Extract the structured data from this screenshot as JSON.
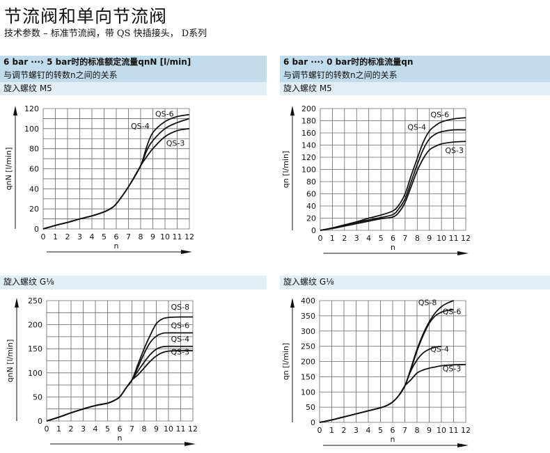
{
  "header": {
    "title": "节流阀和单向节流阀",
    "subtitle": "技术参数 – 标准节流阀，带 QS 快插接头， D系列"
  },
  "sections": {
    "left": {
      "line1": "6 bar ···› 5 bar时的标准额定流量qnN [l/min]",
      "line2": "与调节螺钉的转数n之间的关系"
    },
    "right": {
      "line1": "6 bar ···› 0 bar时的标准流量qn",
      "line2": "与调节螺钉的转数n之间的关系"
    },
    "thread_m5": "旋入螺纹 M5",
    "thread_g18": "旋入螺纹 G⅛"
  },
  "chart_data": [
    {
      "type": "line",
      "xlabel": "n",
      "ylabel": "qnN [l/min]",
      "xlim": [
        0,
        12
      ],
      "ylim": [
        0,
        120
      ],
      "xticks": [
        0,
        1,
        2,
        3,
        4,
        5,
        6,
        7,
        8,
        9,
        10,
        11,
        12
      ],
      "yticks": [
        0,
        20,
        40,
        60,
        80,
        100,
        120
      ],
      "grid": true,
      "series": [
        {
          "name": "QS-6",
          "x": [
            0,
            1,
            2,
            3,
            4,
            5,
            5.5,
            6,
            7,
            8,
            8.5,
            9,
            10,
            11,
            12
          ],
          "y": [
            0,
            3.5,
            6.5,
            10,
            13,
            17,
            20,
            25,
            42,
            63,
            82,
            96,
            107,
            112,
            114
          ]
        },
        {
          "name": "QS-4",
          "x": [
            0,
            1,
            2,
            3,
            4,
            5,
            5.5,
            6,
            7,
            8,
            8.5,
            9,
            10,
            11,
            12
          ],
          "y": [
            0,
            3.5,
            6.5,
            10,
            13,
            17,
            20,
            25,
            42,
            63,
            78,
            88,
            100,
            106,
            110
          ]
        },
        {
          "name": "QS-3",
          "x": [
            0,
            1,
            2,
            3,
            4,
            5,
            5.5,
            6,
            7,
            8,
            8.5,
            9,
            10,
            11,
            12
          ],
          "y": [
            0,
            3.5,
            6.5,
            10,
            13,
            17,
            20,
            25,
            42,
            63,
            72,
            80,
            92,
            98,
            100
          ]
        }
      ]
    },
    {
      "type": "line",
      "xlabel": "n",
      "ylabel": "qn [l/min]",
      "xlim": [
        0,
        12
      ],
      "ylim": [
        0,
        200
      ],
      "xticks": [
        0,
        1,
        2,
        3,
        4,
        5,
        6,
        7,
        8,
        9,
        10,
        11,
        12
      ],
      "yticks": [
        0,
        20,
        40,
        60,
        80,
        100,
        120,
        140,
        160,
        180,
        200
      ],
      "grid": true,
      "series": [
        {
          "name": "QS-6",
          "x": [
            0,
            1,
            2,
            3,
            4,
            5,
            6,
            6.5,
            7,
            7.5,
            8,
            8.5,
            9,
            9.5,
            10,
            11,
            12
          ],
          "y": [
            0,
            4,
            9,
            14,
            20,
            25,
            32,
            42,
            60,
            90,
            118,
            145,
            163,
            172,
            178,
            183,
            185
          ]
        },
        {
          "name": "QS-4",
          "x": [
            0,
            1,
            2,
            3,
            4,
            5,
            6,
            6.5,
            7,
            7.5,
            8,
            8.5,
            9,
            9.5,
            10,
            11,
            12
          ],
          "y": [
            0,
            3.5,
            8,
            13,
            17,
            21,
            26,
            36,
            52,
            80,
            108,
            133,
            150,
            158,
            162,
            165,
            165
          ]
        },
        {
          "name": "QS-3",
          "x": [
            0,
            1,
            2,
            3,
            4,
            5,
            6,
            6.5,
            7,
            7.5,
            8,
            8.5,
            9,
            9.5,
            10,
            11,
            12
          ],
          "y": [
            0,
            3,
            7,
            11,
            15,
            19,
            22,
            30,
            46,
            72,
            98,
            118,
            132,
            138,
            142,
            145,
            146
          ]
        }
      ]
    },
    {
      "type": "line",
      "xlabel": "n",
      "ylabel": "qnN [l/min]",
      "xlim": [
        0,
        12
      ],
      "ylim": [
        0,
        250
      ],
      "xticks": [
        0,
        1,
        2,
        3,
        4,
        5,
        6,
        7,
        8,
        9,
        10,
        11,
        12
      ],
      "yticks": [
        0,
        50,
        100,
        150,
        200,
        250
      ],
      "grid": true,
      "series": [
        {
          "name": "QS-8",
          "x": [
            0,
            1,
            2,
            3,
            4,
            5,
            5.5,
            6,
            6.5,
            7,
            7.5,
            8,
            8.5,
            9,
            9.5,
            10,
            11,
            12
          ],
          "y": [
            0,
            8,
            17,
            25,
            32,
            37,
            42,
            50,
            68,
            85,
            118,
            150,
            178,
            202,
            212,
            215,
            216,
            216
          ]
        },
        {
          "name": "QS-6",
          "x": [
            0,
            1,
            2,
            3,
            4,
            5,
            5.5,
            6,
            6.5,
            7,
            7.5,
            8,
            8.5,
            9,
            9.5,
            10,
            11,
            12
          ],
          "y": [
            0,
            8,
            17,
            25,
            32,
            37,
            42,
            50,
            68,
            85,
            112,
            140,
            163,
            176,
            182,
            183,
            183,
            183
          ]
        },
        {
          "name": "QS-4",
          "x": [
            0,
            1,
            2,
            3,
            4,
            5,
            5.5,
            6,
            6.5,
            7,
            7.5,
            8,
            8.5,
            9,
            9.5,
            10,
            11,
            12
          ],
          "y": [
            0,
            8,
            17,
            25,
            32,
            37,
            42,
            50,
            68,
            85,
            104,
            122,
            138,
            149,
            154,
            155,
            155,
            155
          ]
        },
        {
          "name": "QS-3",
          "x": [
            0,
            1,
            2,
            3,
            4,
            5,
            5.5,
            6,
            6.5,
            7,
            7.5,
            8,
            8.5,
            9,
            9.5,
            10,
            11,
            12
          ],
          "y": [
            0,
            8,
            17,
            25,
            32,
            37,
            42,
            50,
            68,
            85,
            96,
            110,
            124,
            135,
            142,
            145,
            146,
            146
          ]
        }
      ]
    },
    {
      "type": "line",
      "xlabel": "n",
      "ylabel": "qn [l/min]",
      "xlim": [
        0,
        12
      ],
      "ylim": [
        0,
        400
      ],
      "xticks": [
        0,
        1,
        2,
        3,
        4,
        5,
        6,
        7,
        8,
        9,
        10,
        11,
        12
      ],
      "yticks": [
        0,
        50,
        100,
        150,
        200,
        250,
        300,
        350,
        400
      ],
      "grid": true,
      "series": [
        {
          "name": "QS-8",
          "x": [
            0,
            1,
            2,
            3,
            4,
            5,
            5.5,
            6,
            6.5,
            7,
            7.5,
            8,
            8.5,
            9,
            9.5,
            10,
            10.5,
            11
          ],
          "y": [
            0,
            8,
            18,
            28,
            38,
            48,
            55,
            67,
            88,
            120,
            178,
            240,
            290,
            330,
            360,
            380,
            392,
            400
          ]
        },
        {
          "name": "QS-6",
          "x": [
            0,
            1,
            2,
            3,
            4,
            5,
            5.5,
            6,
            6.5,
            7,
            7.5,
            8,
            8.5,
            9,
            9.5,
            10,
            10.5,
            11
          ],
          "y": [
            0,
            8,
            18,
            28,
            38,
            48,
            55,
            67,
            88,
            120,
            175,
            235,
            285,
            325,
            350,
            362,
            368,
            370
          ]
        },
        {
          "name": "QS-4",
          "x": [
            0,
            1,
            2,
            3,
            4,
            5,
            5.5,
            6,
            6.5,
            7,
            7.5,
            8,
            8.5,
            9,
            9.5,
            10
          ],
          "y": [
            0,
            8,
            18,
            28,
            38,
            48,
            55,
            67,
            88,
            120,
            170,
            205,
            228,
            240,
            247,
            250
          ]
        },
        {
          "name": "QS-3",
          "x": [
            0,
            1,
            2,
            3,
            4,
            5,
            5.5,
            6,
            6.5,
            7,
            7.5,
            8,
            8.5,
            9,
            9.5,
            10,
            11,
            12
          ],
          "y": [
            0,
            8,
            18,
            28,
            38,
            48,
            55,
            67,
            88,
            120,
            140,
            162,
            172,
            178,
            182,
            186,
            189,
            190
          ]
        }
      ]
    }
  ]
}
